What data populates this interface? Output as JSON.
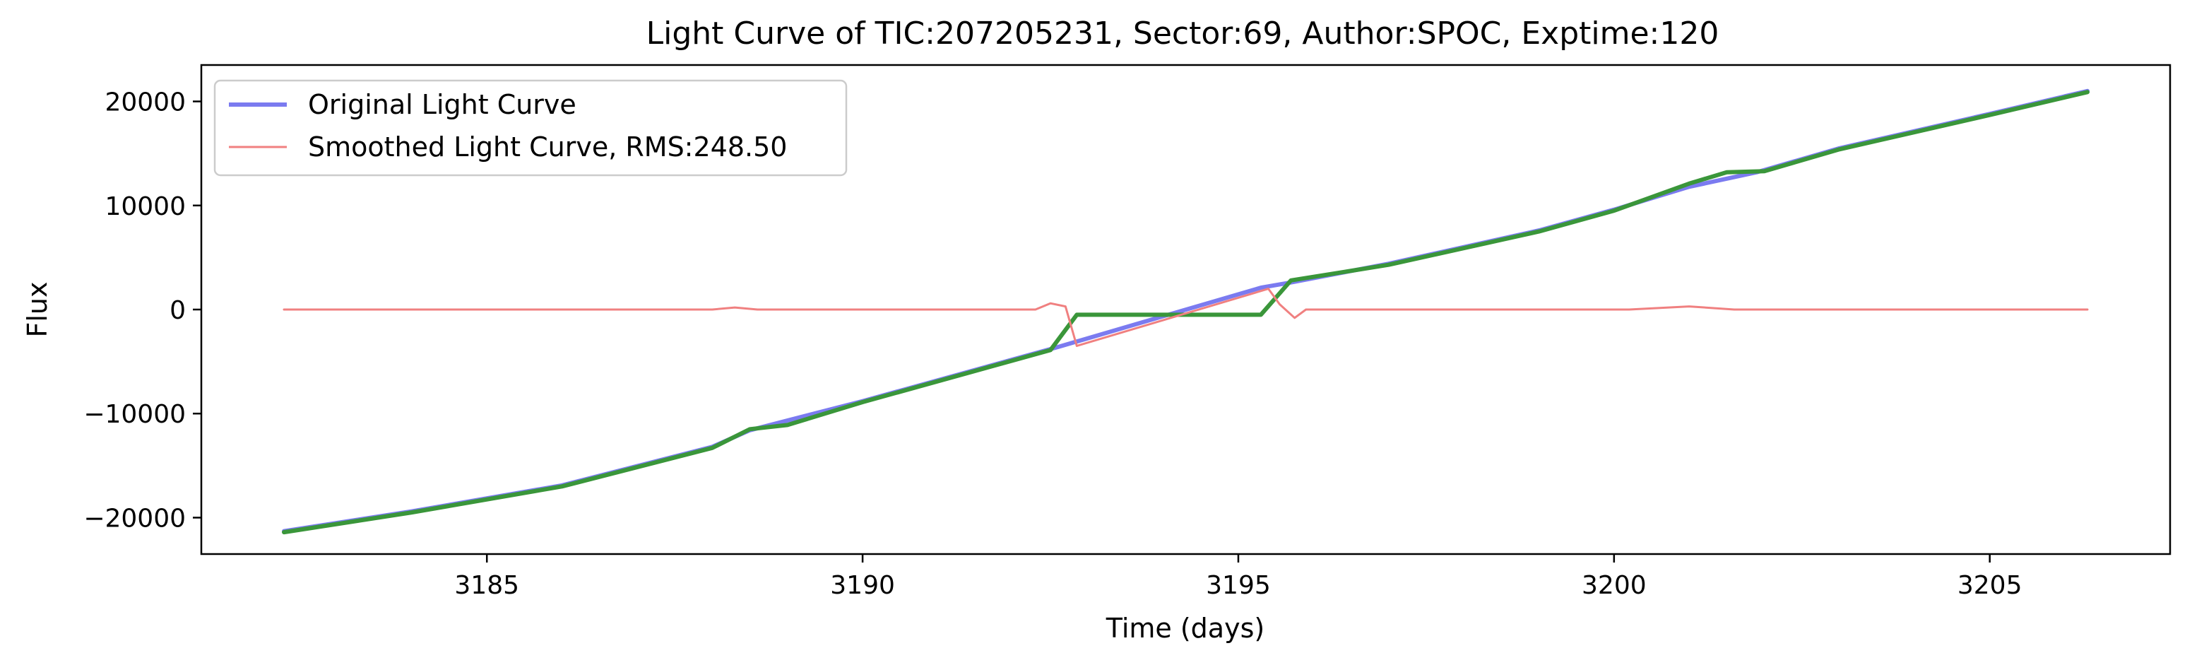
{
  "chart_data": {
    "type": "line",
    "title": "Light Curve of TIC:207205231, Sector:69, Author:SPOC, Exptime:120",
    "xlabel": "Time (days)",
    "ylabel": "Flux",
    "xlim": [
      3181.2,
      3207.4
    ],
    "ylim": [
      -23500,
      23500
    ],
    "xticks": [
      3185,
      3190,
      3195,
      3200,
      3205
    ],
    "xtick_labels": [
      "3185",
      "3190",
      "3195",
      "3200",
      "3205"
    ],
    "yticks": [
      -20000,
      -10000,
      0,
      10000,
      20000
    ],
    "ytick_labels": [
      "−20000",
      "−10000",
      "0",
      "10000",
      "20000"
    ],
    "grid": false,
    "legend": {
      "position": "top-left"
    },
    "series": [
      {
        "name": "Original Light Curve",
        "color": "#7b7bf0",
        "x": [
          3182.3,
          3184,
          3186,
          3188,
          3188.5,
          3190,
          3192,
          3192.6,
          3195.3,
          3195.7,
          3197,
          3199,
          3200,
          3201,
          3201.9,
          3203,
          3205,
          3206.3
        ],
        "y": [
          -21300,
          -19400,
          -16900,
          -13200,
          -11600,
          -8800,
          -4800,
          -3600,
          2100,
          2600,
          4400,
          7600,
          9600,
          11800,
          13200,
          15500,
          18800,
          21000
        ]
      },
      {
        "name": "Smoothed Light Curve, RMS:248.50",
        "color": "#f08080",
        "x": [
          3182.3,
          3188.0,
          3188.3,
          3188.6,
          3192.3,
          3192.5,
          3192.7,
          3192.85,
          3195.4,
          3195.55,
          3195.75,
          3195.9,
          3200.2,
          3201.0,
          3201.6,
          3202.0,
          3206.3
        ],
        "y": [
          0,
          0,
          200,
          0,
          0,
          600,
          300,
          -3500,
          2000,
          500,
          -800,
          0,
          0,
          300,
          0,
          0,
          0
        ]
      },
      {
        "color": "#3a963a",
        "x": [
          3182.3,
          3184,
          3186,
          3188,
          3188.5,
          3189,
          3190,
          3192,
          3192.5,
          3192.85,
          3195.3,
          3195.7,
          3197,
          3199,
          3200,
          3201,
          3201.5,
          3202,
          3203,
          3205,
          3206.3
        ],
        "y": [
          -21400,
          -19500,
          -17000,
          -13300,
          -11500,
          -11100,
          -8900,
          -4900,
          -3900,
          -500,
          -500,
          2800,
          4300,
          7500,
          9500,
          12100,
          13200,
          13300,
          15400,
          18700,
          20900
        ]
      }
    ]
  }
}
